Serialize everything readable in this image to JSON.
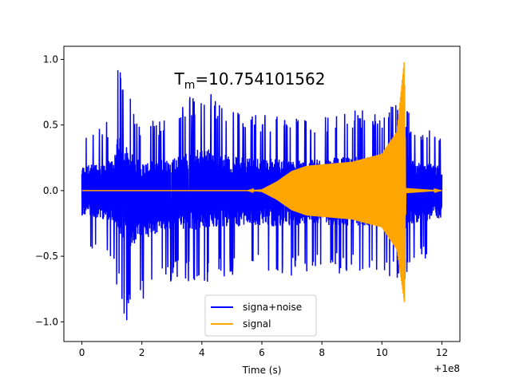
{
  "chart_data": {
    "type": "line",
    "title": "T",
    "title_subscript": "m",
    "title_value": "=10.754101562",
    "xlabel": "Time (s)",
    "ylabel": "",
    "x_offset_label": "+1e8",
    "xlim": [
      -0.6,
      12.6
    ],
    "ylim": [
      -1.15,
      1.1
    ],
    "xticks": [
      0,
      2,
      4,
      6,
      8,
      10,
      12
    ],
    "xtick_labels": [
      "0",
      "2",
      "4",
      "6",
      "8",
      "10",
      "12"
    ],
    "yticks": [
      -1.0,
      -0.5,
      0.0,
      0.5,
      1.0
    ],
    "ytick_labels": [
      "−1.0",
      "−0.5",
      "0.0",
      "0.5",
      "1.0"
    ],
    "grid": false,
    "legend_position": "lower center",
    "series": [
      {
        "name": "signa+noise",
        "color": "#0000ff",
        "description": "dense noise band",
        "upper_envelope": [
          [
            0,
            0.45
          ],
          [
            1,
            0.55
          ],
          [
            1.2,
            1.0
          ],
          [
            2,
            0.5
          ],
          [
            3,
            0.6
          ],
          [
            4,
            0.8
          ],
          [
            5,
            0.62
          ],
          [
            6,
            0.6
          ],
          [
            7,
            0.55
          ],
          [
            8,
            0.58
          ],
          [
            9,
            0.62
          ],
          [
            10,
            0.6
          ],
          [
            10.7,
            0.7
          ],
          [
            11,
            0.55
          ],
          [
            12,
            0.45
          ]
        ],
        "lower_envelope": [
          [
            0,
            -0.45
          ],
          [
            1,
            -0.55
          ],
          [
            1.5,
            -1.07
          ],
          [
            2,
            -0.88
          ],
          [
            3,
            -0.7
          ],
          [
            4,
            -0.72
          ],
          [
            5,
            -0.65
          ],
          [
            6,
            -0.65
          ],
          [
            7,
            -0.65
          ],
          [
            8,
            -0.62
          ],
          [
            9,
            -0.65
          ],
          [
            10,
            -0.62
          ],
          [
            10.7,
            -0.75
          ],
          [
            11,
            -0.6
          ],
          [
            12,
            -0.5
          ]
        ]
      },
      {
        "name": "signal",
        "color": "#ffa500",
        "description": "chirp envelope",
        "upper_envelope": [
          [
            0,
            0.0
          ],
          [
            5.5,
            0.0
          ],
          [
            6,
            0.01
          ],
          [
            6.5,
            0.07
          ],
          [
            7,
            0.15
          ],
          [
            7.5,
            0.19
          ],
          [
            8,
            0.2
          ],
          [
            9,
            0.22
          ],
          [
            10,
            0.28
          ],
          [
            10.5,
            0.45
          ],
          [
            10.75,
            1.0
          ],
          [
            10.8,
            0.02
          ],
          [
            12,
            0.0
          ]
        ],
        "lower_envelope": [
          [
            0,
            0.0
          ],
          [
            5.5,
            0.0
          ],
          [
            6,
            -0.01
          ],
          [
            6.5,
            -0.07
          ],
          [
            7,
            -0.15
          ],
          [
            7.5,
            -0.19
          ],
          [
            8,
            -0.2
          ],
          [
            9,
            -0.22
          ],
          [
            10,
            -0.28
          ],
          [
            10.5,
            -0.45
          ],
          [
            10.75,
            -0.85
          ],
          [
            10.8,
            -0.02
          ],
          [
            12,
            0.0
          ]
        ]
      }
    ]
  }
}
